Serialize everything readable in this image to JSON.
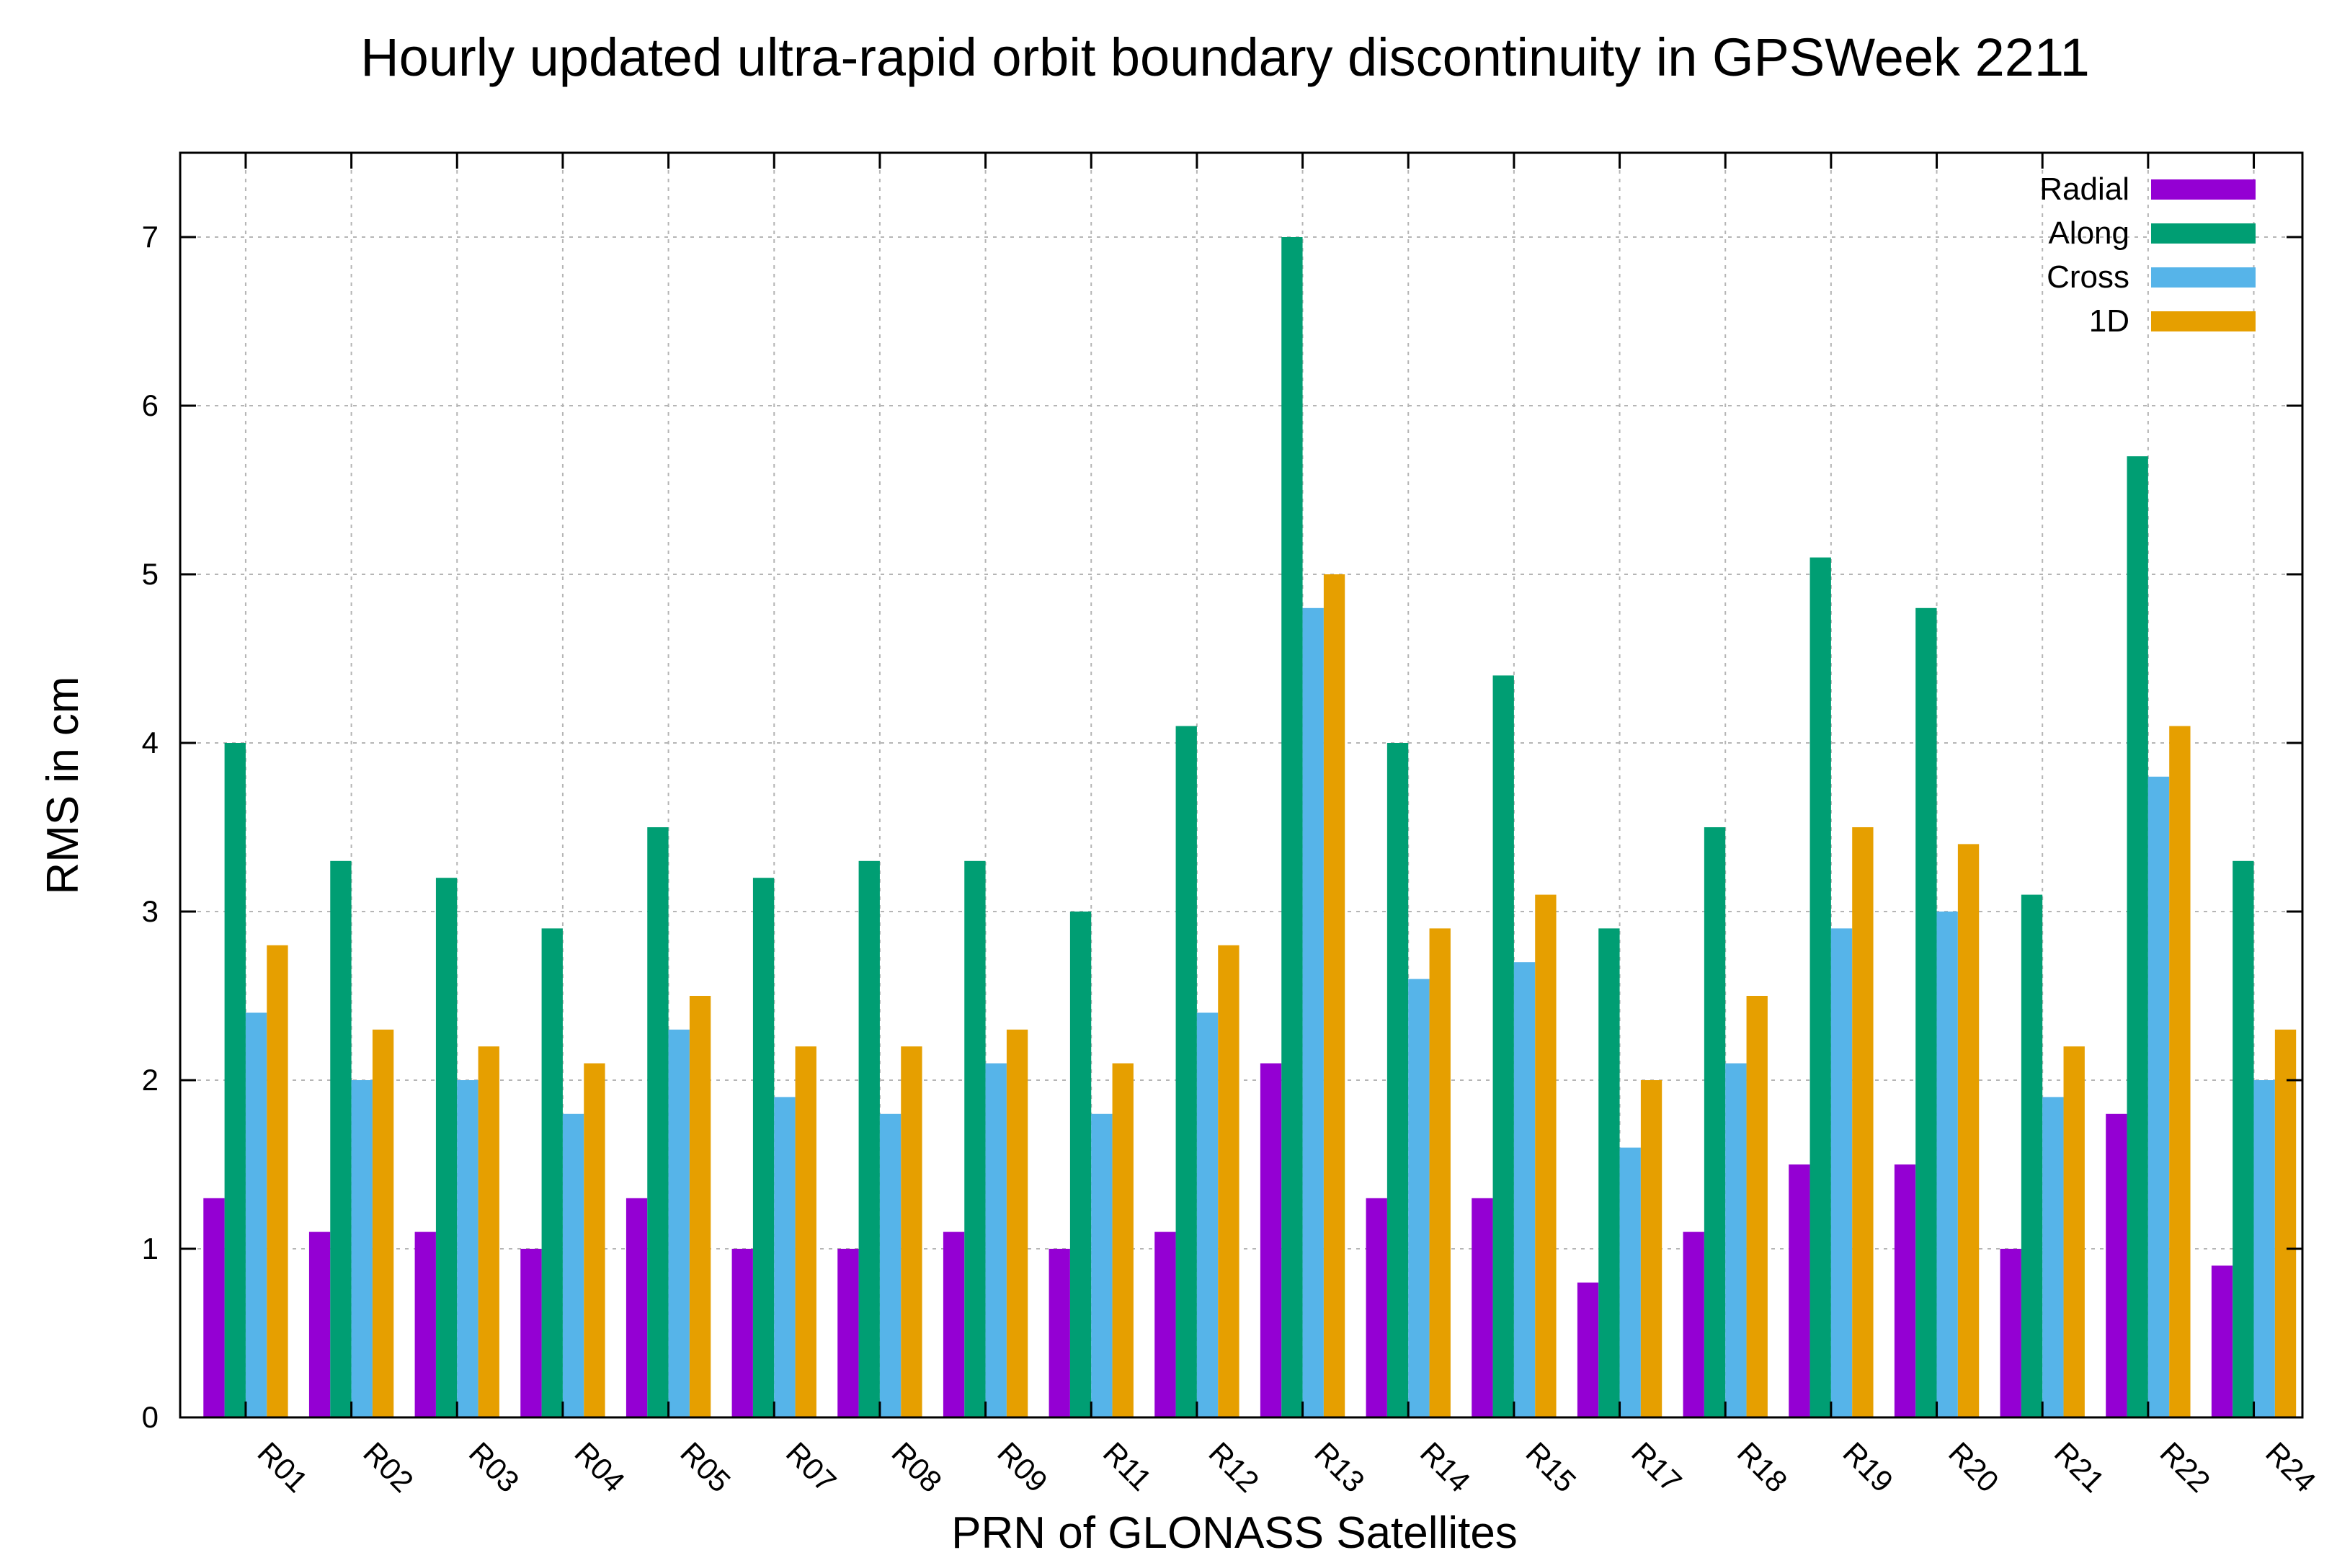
{
  "chart_data": {
    "type": "bar",
    "title": "Hourly updated ultra-rapid orbit boundary discontinuity in GPSWeek 2211",
    "xlabel": "PRN of GLONASS Satellites",
    "ylabel": "RMS in cm",
    "ylim": [
      0,
      7.5
    ],
    "yticks": [
      "0",
      "1",
      "2",
      "3",
      "4",
      "5",
      "6",
      "7"
    ],
    "grid": true,
    "legend_position": "top-right",
    "categories": [
      "R01",
      "R02",
      "R03",
      "R04",
      "R05",
      "R07",
      "R08",
      "R09",
      "R11",
      "R12",
      "R13",
      "R14",
      "R15",
      "R17",
      "R18",
      "R19",
      "R20",
      "R21",
      "R22",
      "R24"
    ],
    "series": [
      {
        "name": "Radial",
        "color": "#9400d3",
        "values": [
          1.3,
          1.1,
          1.1,
          1.0,
          1.3,
          1.0,
          1.0,
          1.1,
          1.0,
          1.1,
          2.1,
          1.3,
          1.3,
          0.8,
          1.1,
          1.5,
          1.5,
          1.0,
          1.8,
          0.9
        ]
      },
      {
        "name": "Along",
        "color": "#009e73",
        "values": [
          4.0,
          3.3,
          3.2,
          2.9,
          3.5,
          3.2,
          3.3,
          3.3,
          3.0,
          4.1,
          7.0,
          4.0,
          4.4,
          2.9,
          3.5,
          5.1,
          4.8,
          3.1,
          5.7,
          3.3
        ]
      },
      {
        "name": "Cross",
        "color": "#56b4e9",
        "values": [
          2.4,
          2.0,
          2.0,
          1.8,
          2.3,
          1.9,
          1.8,
          2.1,
          1.8,
          2.4,
          4.8,
          2.6,
          2.7,
          1.6,
          2.1,
          2.9,
          3.0,
          1.9,
          3.8,
          2.0
        ]
      },
      {
        "name": "1D",
        "color": "#e69f00",
        "values": [
          2.8,
          2.3,
          2.2,
          2.1,
          2.5,
          2.2,
          2.2,
          2.3,
          2.1,
          2.8,
          5.0,
          2.9,
          3.1,
          2.0,
          2.5,
          3.5,
          3.4,
          2.2,
          4.1,
          2.3
        ]
      }
    ]
  }
}
